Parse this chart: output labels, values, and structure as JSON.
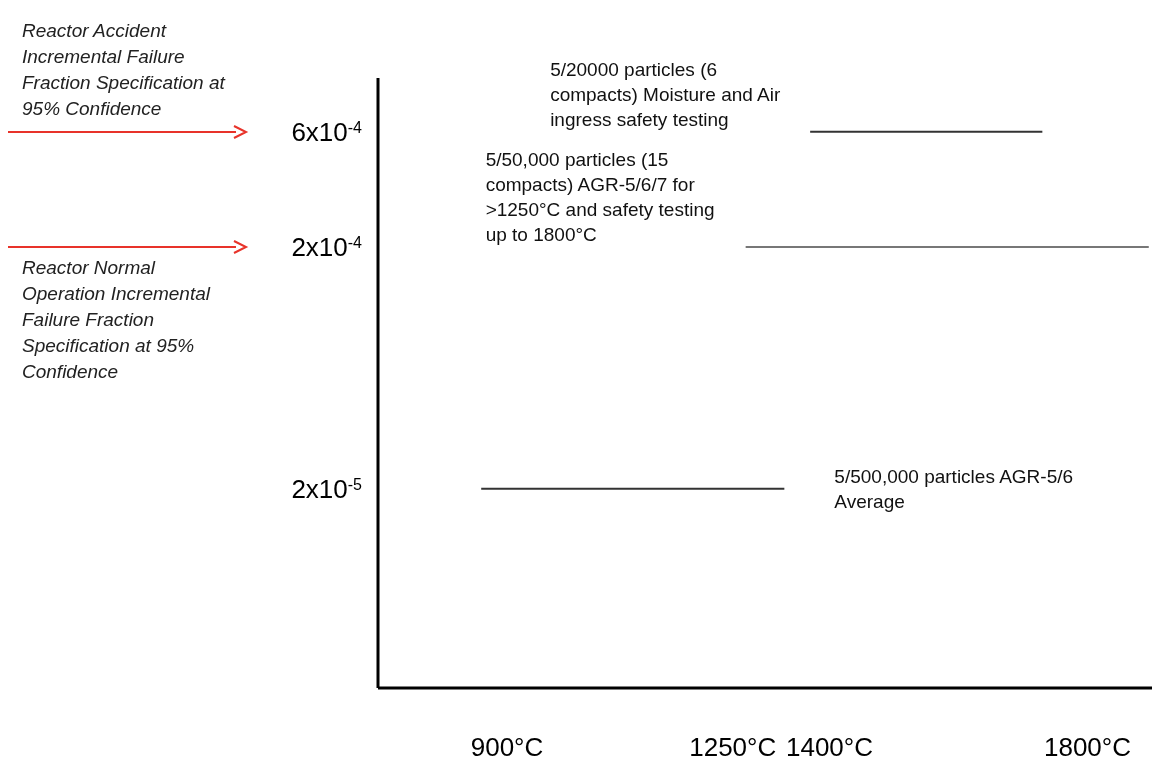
{
  "chart_data": {
    "type": "line",
    "log": "y",
    "xlim": [
      700,
      1900
    ],
    "xticks": [
      {
        "value": 900,
        "label": "900°C"
      },
      {
        "value": 1250,
        "label": "1250°C"
      },
      {
        "value": 1400,
        "label": "1400°C"
      },
      {
        "value": 1800,
        "label": "1800°C"
      }
    ],
    "ylim": [
      3e-06,
      0.001
    ],
    "yticks": [
      {
        "value": 0.0006,
        "label": "6x10$^{-4}$"
      },
      {
        "value": 0.0002,
        "label": "2x10$^{-4}$"
      },
      {
        "value": 2e-05,
        "label": "2x10$^{-5}$"
      }
    ],
    "grid": false,
    "legend": false,
    "marker": "none",
    "line_style": "solid",
    "series": [
      {
        "name": "5/20000 particles (6 compacts) Moisture and Air ingress safety testing",
        "color": "#333333",
        "x": [
          1370,
          1730
        ],
        "values": [
          0.0006,
          0.0006
        ]
      },
      {
        "name": "5/50,000 particles (15 compacts) AGR-5/6/7 for >1250°C and safety testing up to 1800°C",
        "color": "#777777",
        "x": [
          1270,
          1895
        ],
        "values": [
          0.0002,
          0.0002
        ]
      },
      {
        "name": "5/500,000 particles AGR-5/6 Average",
        "color": "#333333",
        "x": [
          860,
          1330
        ],
        "values": [
          2e-05,
          2e-05
        ]
      }
    ],
    "annotations": [
      "Reactor Accident Incremental Failure Fraction Specification at 95% Confidence",
      "Reactor Normal Operation Incremental Failure Fraction Specification at 95% Confidence"
    ]
  }
}
